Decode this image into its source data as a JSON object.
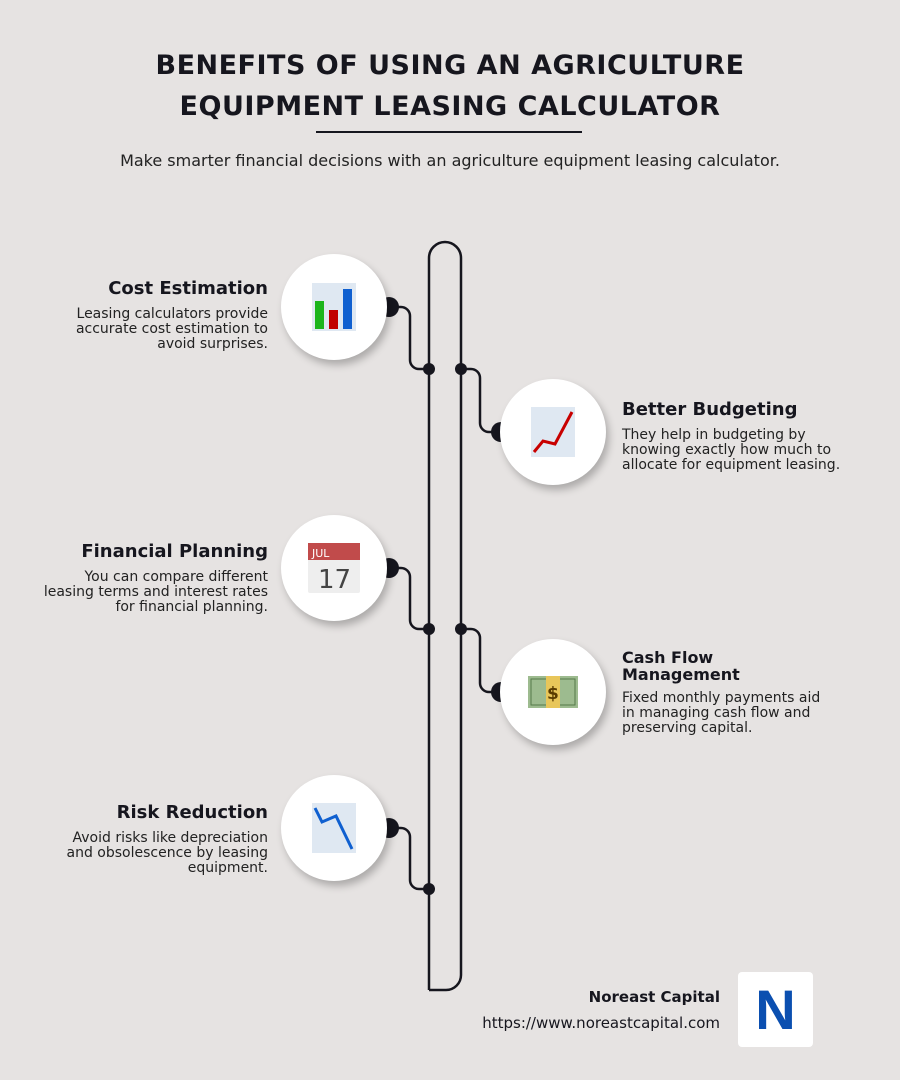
{
  "header": {
    "title_line1": "BENEFITS OF USING AN AGRICULTURE",
    "title_line2": "EQUIPMENT LEASING CALCULATOR",
    "subtitle": "Make smarter financial decisions with an agriculture equipment leasing calculator."
  },
  "items": [
    {
      "title": "Cost Estimation",
      "text": "Leasing calculators provide accurate cost estimation to avoid surprises.",
      "icon": "bar-chart-icon"
    },
    {
      "title": "Better Budgeting",
      "text": "They help in budgeting by knowing exactly how much to allocate for equipment leasing.",
      "icon": "chart-increasing-icon"
    },
    {
      "title": "Financial Planning",
      "text": "You can compare different leasing terms and interest rates for financial planning.",
      "icon": "calendar-icon",
      "calendar_month": "JUL",
      "calendar_day": "17"
    },
    {
      "title": "Cash Flow Management",
      "text": "Fixed monthly payments aid in managing cash flow and preserving capital.",
      "icon": "banknote-icon",
      "currency_symbol": "$"
    },
    {
      "title": "Risk Reduction",
      "text": "Avoid risks like depreciation and obsolescence by leasing equipment.",
      "icon": "chart-decreasing-icon"
    }
  ],
  "footer": {
    "company": "Noreast Capital",
    "url": "https://www.noreastcapital.com",
    "logo_letter": "N",
    "logo_color": "#0b4fb0"
  }
}
